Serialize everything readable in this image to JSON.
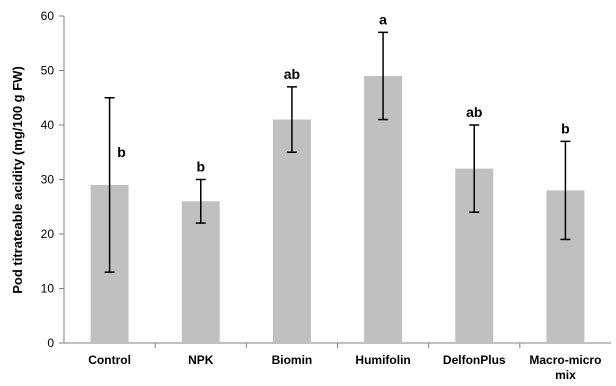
{
  "chart_data": {
    "type": "bar",
    "categories": [
      "Control",
      "NPK",
      "Biomin",
      "Humifolin",
      "DelfonPlus",
      "Macro-micro mix"
    ],
    "category_lines": [
      [
        "Control"
      ],
      [
        "NPK"
      ],
      [
        "Biomin"
      ],
      [
        "Humifolin"
      ],
      [
        "DelfonPlus"
      ],
      [
        "Macro-micro",
        "mix"
      ]
    ],
    "values": [
      29,
      26,
      41,
      49,
      32,
      28
    ],
    "error_low": [
      13,
      22,
      35,
      41,
      24,
      19
    ],
    "error_high": [
      45,
      30,
      47,
      57,
      40,
      37
    ],
    "significance_letters": [
      "b",
      "b",
      "ab",
      "a",
      "ab",
      "b"
    ],
    "ylabel": "Pod titrateable acidity (mg/100 g FW)",
    "xlabel": "",
    "ylim": [
      0,
      60
    ],
    "yticks": [
      0,
      10,
      20,
      30,
      40,
      50,
      60
    ],
    "grid": false,
    "bar_color": "#c0c0c0",
    "error_bar_color": "#000000"
  }
}
